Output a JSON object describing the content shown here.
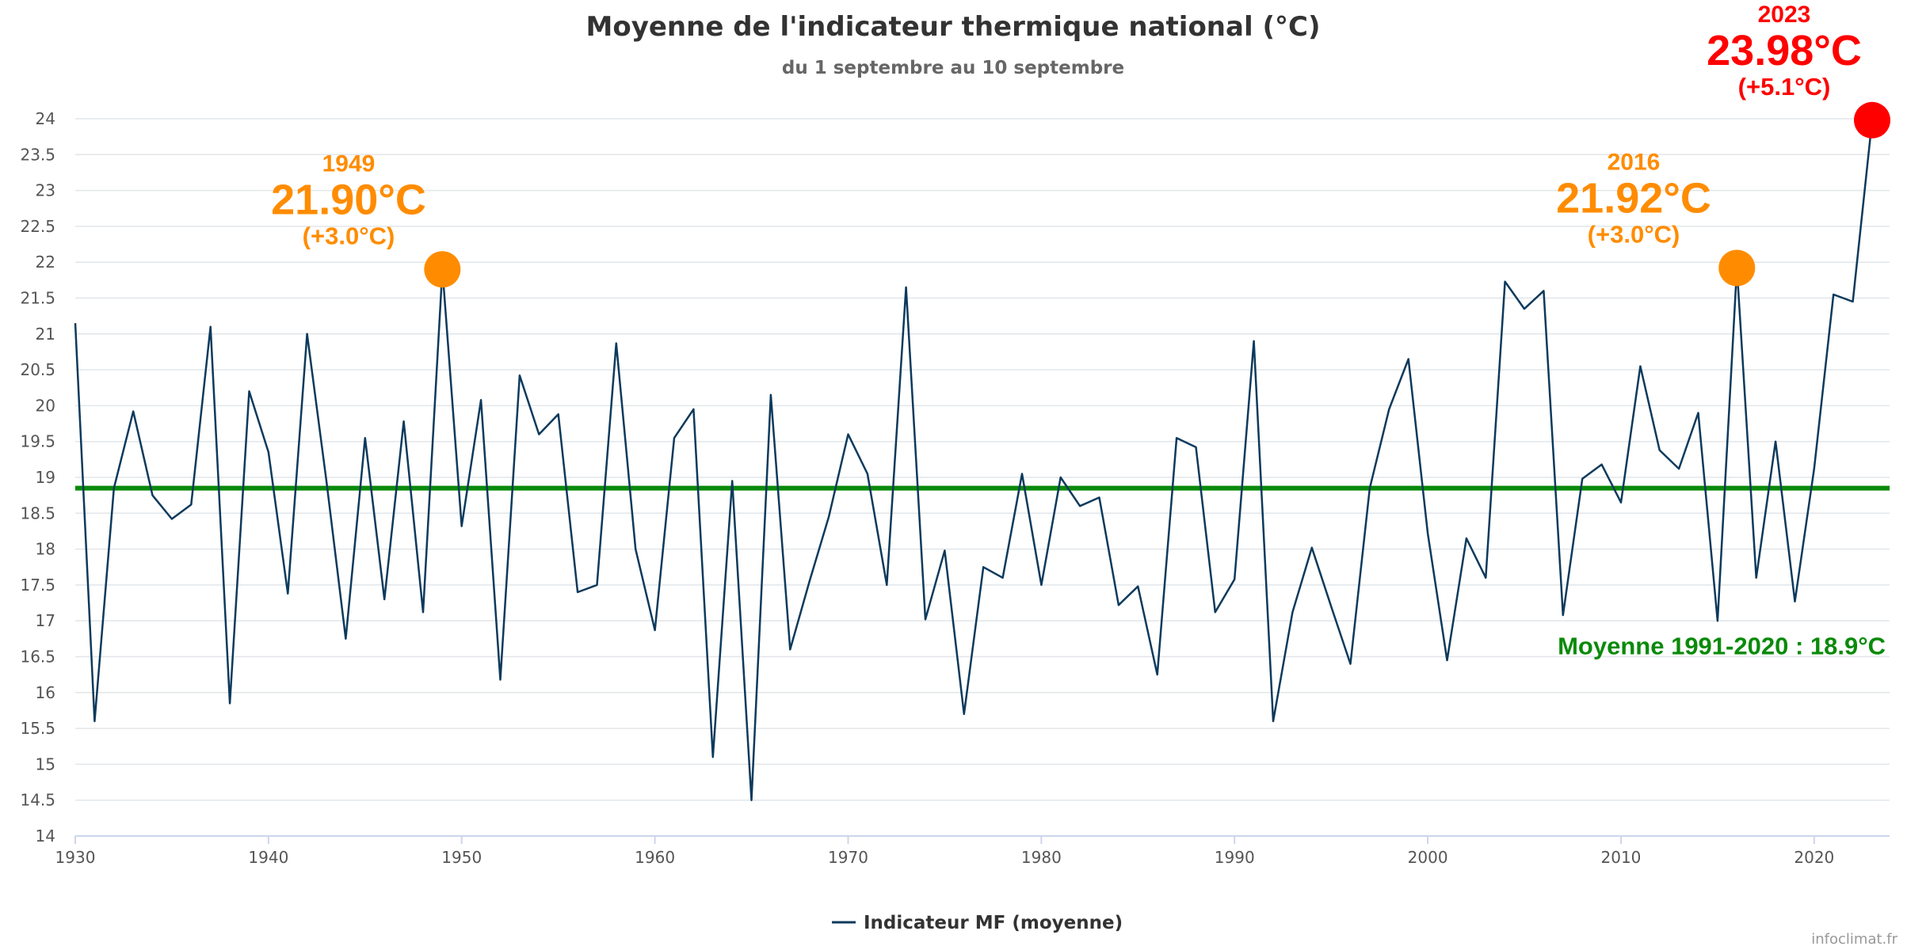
{
  "chart_data": {
    "type": "line",
    "title": "Moyenne de l'indicateur thermique national (°C)",
    "subtitle": "du 1 septembre au 10 septembre",
    "xlim": [
      1930,
      2023
    ],
    "ylim": [
      14,
      24
    ],
    "x_ticks": [
      "1930",
      "1940",
      "1950",
      "1960",
      "1970",
      "1980",
      "1990",
      "2000",
      "2010",
      "2020"
    ],
    "y_ticks": [
      "14",
      "14.5",
      "15",
      "15.5",
      "16",
      "16.5",
      "17",
      "17.5",
      "18",
      "18.5",
      "19",
      "19.5",
      "20",
      "20.5",
      "21",
      "21.5",
      "22",
      "22.5",
      "23",
      "23.5",
      "24"
    ],
    "grid": true,
    "series": [
      {
        "name": "Indicateur MF (moyenne)",
        "color": "#0d3a5c",
        "x": [
          1930,
          1931,
          1932,
          1933,
          1934,
          1935,
          1936,
          1937,
          1938,
          1939,
          1940,
          1941,
          1942,
          1943,
          1944,
          1945,
          1946,
          1947,
          1948,
          1949,
          1950,
          1951,
          1952,
          1953,
          1954,
          1955,
          1956,
          1957,
          1958,
          1959,
          1960,
          1961,
          1962,
          1963,
          1964,
          1965,
          1966,
          1967,
          1968,
          1969,
          1970,
          1971,
          1972,
          1973,
          1974,
          1975,
          1976,
          1977,
          1978,
          1979,
          1980,
          1981,
          1982,
          1983,
          1984,
          1985,
          1986,
          1987,
          1988,
          1989,
          1990,
          1991,
          1992,
          1993,
          1994,
          1995,
          1996,
          1997,
          1998,
          1999,
          2000,
          2001,
          2002,
          2003,
          2004,
          2005,
          2006,
          2007,
          2008,
          2009,
          2010,
          2011,
          2012,
          2013,
          2014,
          2015,
          2016,
          2017,
          2018,
          2019,
          2020,
          2021,
          2022,
          2023
        ],
        "values": [
          21.15,
          15.6,
          18.85,
          19.92,
          18.75,
          18.42,
          18.62,
          21.1,
          15.85,
          20.2,
          19.35,
          17.38,
          21.0,
          18.95,
          16.75,
          19.55,
          17.3,
          19.78,
          17.12,
          21.9,
          18.32,
          20.08,
          16.18,
          20.42,
          19.6,
          19.88,
          17.4,
          17.5,
          20.87,
          18.0,
          16.87,
          19.55,
          19.95,
          15.1,
          18.95,
          14.5,
          20.15,
          16.6,
          17.55,
          18.45,
          19.6,
          19.05,
          17.5,
          21.65,
          17.02,
          17.98,
          15.7,
          17.75,
          17.6,
          19.05,
          17.5,
          19.0,
          18.6,
          18.72,
          17.22,
          17.48,
          16.25,
          19.55,
          19.42,
          17.12,
          17.58,
          20.9,
          15.6,
          17.12,
          18.02,
          17.2,
          16.4,
          18.85,
          19.95,
          20.65,
          18.22,
          16.45,
          18.15,
          17.6,
          21.73,
          21.35,
          21.6,
          17.08,
          18.98,
          19.18,
          18.65,
          20.55,
          19.38,
          19.12,
          19.9,
          17.0,
          21.92,
          17.6,
          19.5,
          17.27,
          19.12,
          21.55,
          21.45,
          23.98
        ]
      }
    ],
    "reference_line": {
      "value": 18.85,
      "label": "Moyenne 1991-2020 : 18.9°C",
      "color": "#0a8a0a"
    },
    "highlights": [
      {
        "year": "1949",
        "x": 1949,
        "y": 21.9,
        "value_label": "21.90°C",
        "anomaly": "(+3.0°C)",
        "color": "#ff8c00"
      },
      {
        "year": "2016",
        "x": 2016,
        "y": 21.92,
        "value_label": "21.92°C",
        "anomaly": "(+3.0°C)",
        "color": "#ff8c00"
      },
      {
        "year": "2023",
        "x": 2023,
        "y": 23.98,
        "value_label": "23.98°C",
        "anomaly": "(+5.1°C)",
        "color": "#ff0000"
      }
    ],
    "legend": {
      "label": "Indicateur MF (moyenne)",
      "placement": "bottom"
    },
    "credit": "infoclimat.fr"
  }
}
